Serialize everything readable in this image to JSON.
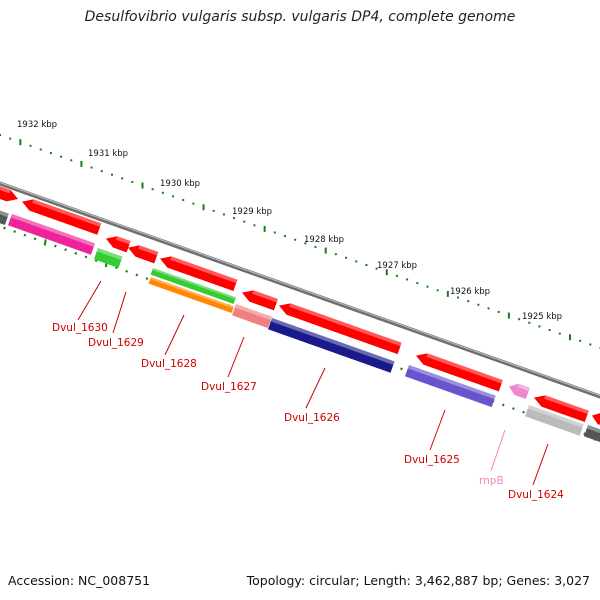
{
  "title": "Desulfovibrio vulgaris subsp. vulgaris DP4, complete genome",
  "footer": {
    "accession": "Accession: NC_008751",
    "summary": "Topology: circular; Length: 3,462,887 bp; Genes: 3,027"
  },
  "colors": {
    "backbone": "#808080",
    "forward_cds": "#ff0000",
    "tick": "#1a7a1a",
    "label_red": "#cc0000",
    "label_pink": "#ee88bb",
    "cog_magenta": "#ee2299",
    "cog_green": "#33cc33",
    "cog_orange": "#ff8800",
    "cog_salmon": "#f08080",
    "cog_navy": "#1a1a8c",
    "cog_slate": "#6655cc",
    "cog_gray": "#bbbbbb",
    "rna_pink": "#ee88cc",
    "dark_gray": "#555555"
  },
  "scale_labels": [
    "1932 kbp",
    "1931 kbp",
    "1930 kbp",
    "1929 kbp",
    "1928 kbp",
    "1927 kbp",
    "1926 kbp",
    "1925 kbp"
  ],
  "gene_labels": [
    {
      "text": "Dvul_1630",
      "color": "#cc0000"
    },
    {
      "text": "Dvul_1629",
      "color": "#cc0000"
    },
    {
      "text": "Dvul_1628",
      "color": "#cc0000"
    },
    {
      "text": "Dvul_1627",
      "color": "#cc0000"
    },
    {
      "text": "Dvul_1626",
      "color": "#cc0000"
    },
    {
      "text": "Dvul_1625",
      "color": "#cc0000"
    },
    {
      "text": "rnpB",
      "color": "#ee88bb"
    },
    {
      "text": "Dvul_1624",
      "color": "#cc0000"
    }
  ]
}
